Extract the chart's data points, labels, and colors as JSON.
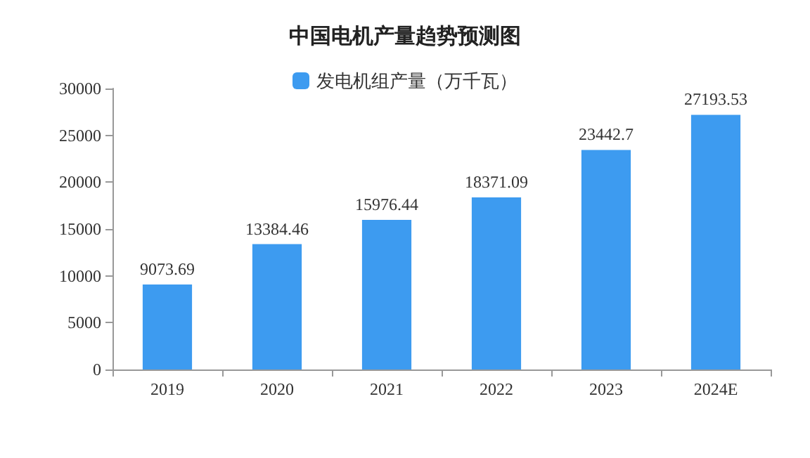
{
  "chart_data": {
    "type": "bar",
    "title": "中国电机产量趋势预测图",
    "categories": [
      "2019",
      "2020",
      "2021",
      "2022",
      "2023",
      "2024E"
    ],
    "series": [
      {
        "name": "发电机组产量（万千瓦）",
        "color": "#3d9bf0",
        "values": [
          9073.69,
          13384.46,
          15976.44,
          18371.09,
          23442.7,
          27193.53
        ]
      }
    ],
    "ylim": [
      0,
      30000
    ],
    "yticks": [
      0,
      5000,
      10000,
      15000,
      20000,
      25000,
      30000
    ],
    "grid": false,
    "legend": "top",
    "data_labels": true
  }
}
